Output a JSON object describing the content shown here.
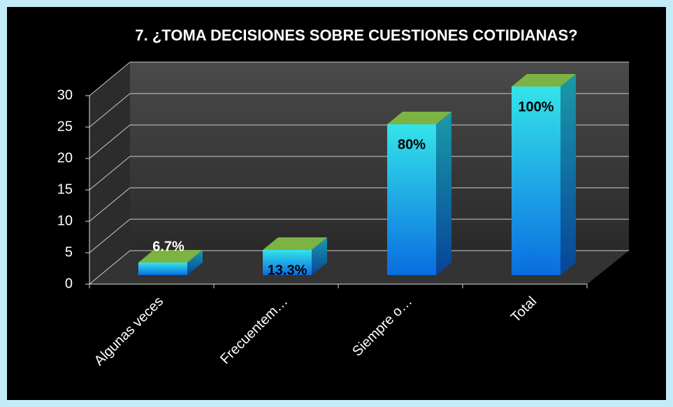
{
  "chart_data": {
    "type": "bar3d",
    "title": "7. ¿TOMA DECISIONES SOBRE CUESTIONES COTIDIANAS?",
    "categories": [
      "Algunas veces",
      "Frecuentem…",
      "Siempre o…",
      "Total"
    ],
    "values": [
      2,
      4,
      24,
      30
    ],
    "value_labels": [
      "6.7%",
      "13.3%",
      "80%",
      "100%"
    ],
    "ylim": [
      0,
      30
    ],
    "yticks": [
      0,
      5,
      10,
      15,
      20,
      25,
      30
    ],
    "grid": true
  }
}
